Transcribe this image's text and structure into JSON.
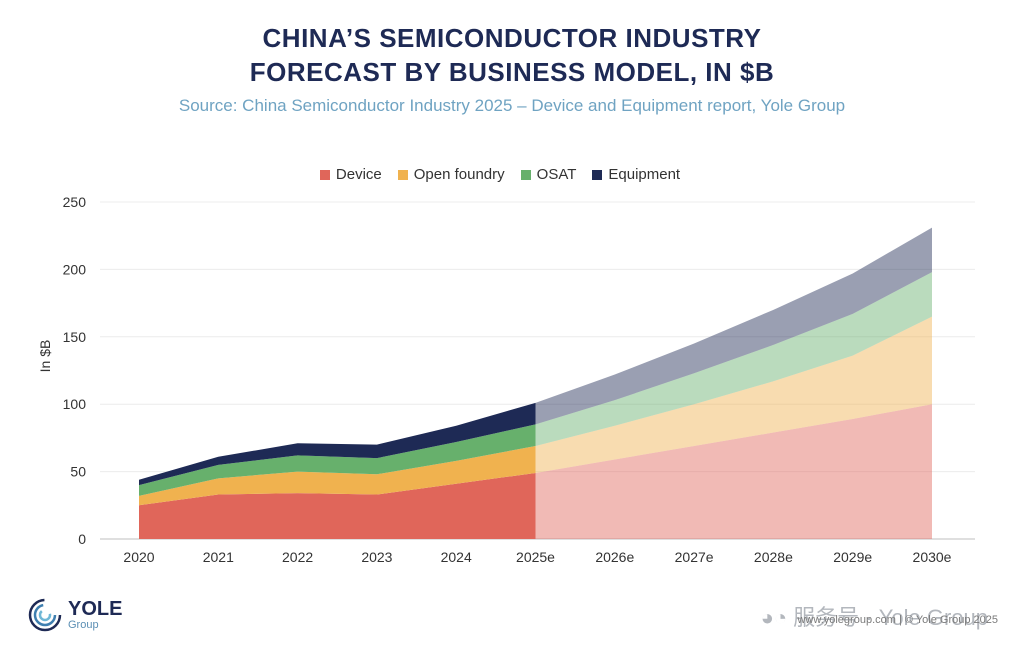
{
  "header": {
    "title_line1": "CHINA’S SEMICONDUCTOR INDUSTRY",
    "title_line2": "FORECAST BY BUSINESS MODEL, IN $B",
    "subtitle": "Source: China Semiconductor Industry 2025 – Device and Equipment report, Yole Group"
  },
  "colors": {
    "Device": "#e0665a",
    "Open foundry": "#f0b24f",
    "OSAT": "#67b06c",
    "Equipment": "#1e2a55"
  },
  "chart_data": {
    "type": "area",
    "stacked": true,
    "x": [
      "2020",
      "2021",
      "2022",
      "2023",
      "2024",
      "2025e",
      "2026e",
      "2027e",
      "2028e",
      "2029e",
      "2030e"
    ],
    "series": [
      {
        "name": "Device",
        "values": [
          25,
          33,
          34,
          33,
          41,
          49,
          59,
          69,
          79,
          89,
          100
        ]
      },
      {
        "name": "Open foundry",
        "values": [
          7,
          12,
          16,
          15,
          17,
          20,
          25,
          31,
          38,
          47,
          65
        ]
      },
      {
        "name": "OSAT",
        "values": [
          8,
          10,
          12,
          12,
          14,
          16,
          19,
          23,
          27,
          31,
          33
        ]
      },
      {
        "name": "Equipment",
        "values": [
          4,
          6,
          9,
          10,
          12,
          16,
          19,
          22,
          26,
          30,
          33
        ]
      }
    ],
    "forecast_start": "2025e",
    "ylabel": "In $B",
    "xlabel": "",
    "ylim": [
      0,
      250
    ],
    "yticks": [
      0,
      50,
      100,
      150,
      200,
      250
    ],
    "grid": true,
    "legend_position": "top-center"
  },
  "branding": {
    "logo_name": "YOLE",
    "logo_sub": "Group",
    "watermark": "服务号 · Yole Group",
    "footer": "www.yolegroup.com | © Yole Group 2025"
  }
}
